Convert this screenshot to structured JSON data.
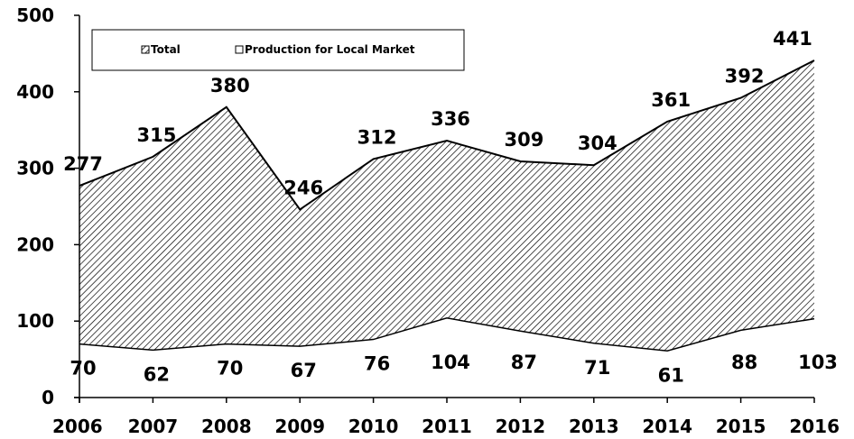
{
  "chart_data": {
    "type": "area",
    "x": [
      "2006",
      "2007",
      "2008",
      "2009",
      "2010",
      "2011",
      "2012",
      "2013",
      "2014",
      "2015",
      "2016"
    ],
    "series": [
      {
        "name": "Total",
        "values": [
          277,
          315,
          380,
          246,
          312,
          336,
          309,
          304,
          361,
          392,
          441
        ],
        "fill": "hatch"
      },
      {
        "name": "Production for Local Market",
        "values": [
          70,
          62,
          70,
          67,
          76,
          104,
          87,
          71,
          61,
          88,
          103
        ],
        "fill": "#ffffff"
      }
    ],
    "yticks": [
      0,
      100,
      200,
      300,
      400,
      500
    ],
    "ylim": [
      0,
      500
    ],
    "legend": {
      "position": "top-left",
      "entries": [
        "Total",
        "Production for Local Market"
      ]
    },
    "grid": false,
    "colors": {
      "line": "#000000",
      "hatch": "#000000",
      "background": "#ffffff"
    }
  }
}
